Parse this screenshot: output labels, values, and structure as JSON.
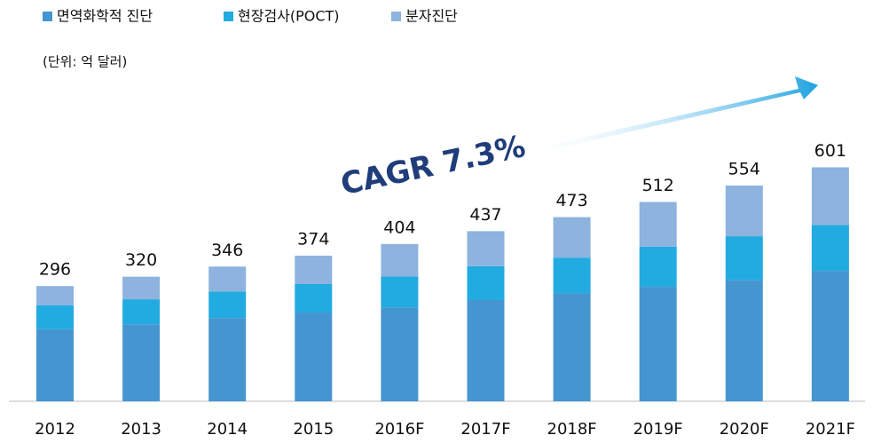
{
  "chart_data": {
    "type": "bar",
    "stacked": true,
    "subtitle": "(단위: 억 달러)",
    "annotation": "CAGR 7.3%",
    "categories": [
      "2012",
      "2013",
      "2014",
      "2015",
      "2016F",
      "2017F",
      "2018F",
      "2019F",
      "2020F",
      "2021F"
    ],
    "series": [
      {
        "name": "면역화학적 진단",
        "color": "#4596d0",
        "values": [
          185,
          198,
          214,
          228,
          241,
          260,
          278,
          294,
          312,
          335
        ]
      },
      {
        "name": "현장검사(POCT)",
        "color": "#22abe0",
        "values": [
          62,
          64,
          68,
          73,
          80,
          87,
          91,
          103,
          112,
          118
        ]
      },
      {
        "name": "분자진단",
        "color": "#8db3de",
        "values": [
          49,
          58,
          64,
          73,
          83,
          90,
          104,
          115,
          130,
          148
        ]
      }
    ],
    "totals": [
      296,
      320,
      346,
      374,
      404,
      437,
      473,
      512,
      554,
      601
    ]
  }
}
